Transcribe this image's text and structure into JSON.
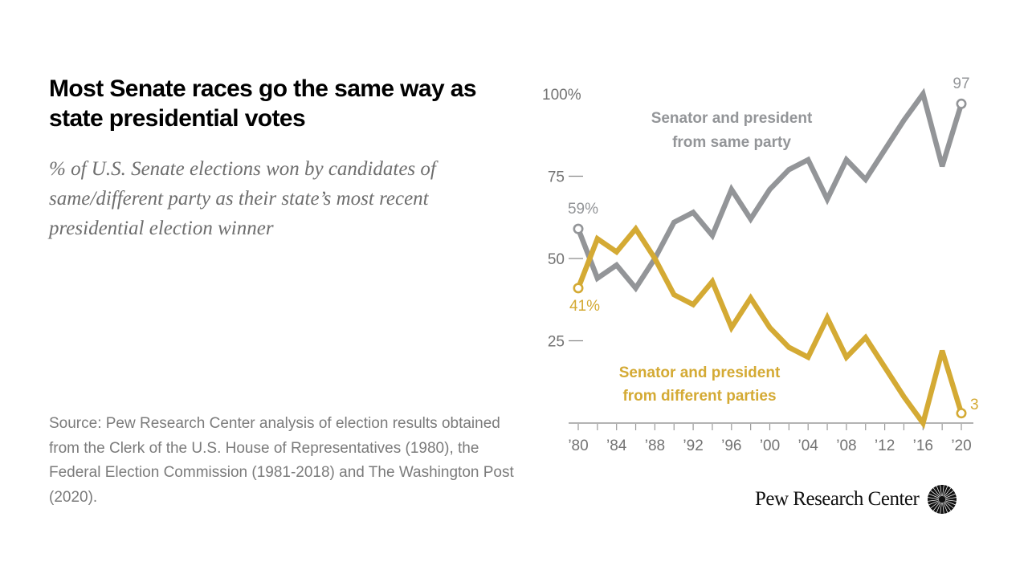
{
  "header": {
    "title": "Most Senate races go the same way as state presidential votes",
    "subtitle": "% of U.S. Senate elections won by candidates of same/different party as their state’s most recent presidential election winner"
  },
  "footer": {
    "source": "Source: Pew Research Center analysis of election results obtained from the Clerk of the U.S. House of Representatives (1980), the Federal Election Commission (1981-2018) and The Washington Post (2020).",
    "brand": "Pew Research Center",
    "brand_icon": "pew-sunburst-icon"
  },
  "colors": {
    "same_party": "#939598",
    "different_party": "#d4aa34",
    "axis": "#b3b3b3",
    "tick_text": "#737373"
  },
  "chart_data": {
    "type": "line",
    "title": "Most Senate races go the same way as state presidential votes",
    "xlabel": "",
    "ylabel": "",
    "x": [
      1980,
      1982,
      1984,
      1986,
      1988,
      1990,
      1992,
      1994,
      1996,
      1998,
      2000,
      2002,
      2004,
      2006,
      2008,
      2010,
      2012,
      2014,
      2016,
      2018,
      2020
    ],
    "xlim": [
      1980,
      2020
    ],
    "ylim": [
      0,
      100
    ],
    "x_ticks": [
      1980,
      1982,
      1984,
      1986,
      1988,
      1990,
      1992,
      1994,
      1996,
      1998,
      2000,
      2002,
      2004,
      2006,
      2008,
      2010,
      2012,
      2014,
      2016,
      2018,
      2020
    ],
    "x_tick_labels": [
      {
        "year": 1980,
        "label": "’80"
      },
      {
        "year": 1984,
        "label": "’84"
      },
      {
        "year": 1988,
        "label": "’88"
      },
      {
        "year": 1992,
        "label": "’92"
      },
      {
        "year": 1996,
        "label": "’96"
      },
      {
        "year": 2000,
        "label": "’00"
      },
      {
        "year": 2004,
        "label": "’04"
      },
      {
        "year": 2008,
        "label": "’08"
      },
      {
        "year": 2012,
        "label": "’12"
      },
      {
        "year": 2016,
        "label": "’16"
      },
      {
        "year": 2020,
        "label": "’20"
      }
    ],
    "y_ticks": [
      {
        "value": 100,
        "label": "100%",
        "dash": false
      },
      {
        "value": 75,
        "label": "75",
        "dash": true
      },
      {
        "value": 50,
        "label": "50",
        "dash": true
      },
      {
        "value": 25,
        "label": "25",
        "dash": true
      }
    ],
    "grid": false,
    "series": [
      {
        "name": "Senator and president from same party",
        "label_lines": [
          "Senator and president",
          "from same party"
        ],
        "color": "#939598",
        "values": [
          59,
          44,
          48,
          41,
          50,
          61,
          64,
          57,
          71,
          62,
          71,
          77,
          80,
          68,
          80,
          74,
          83,
          92,
          100,
          78,
          97
        ],
        "start_label": "59%",
        "end_label": "97"
      },
      {
        "name": "Senator and president from different parties",
        "label_lines": [
          "Senator and president",
          "from different parties"
        ],
        "color": "#d4aa34",
        "values": [
          41,
          56,
          52,
          59,
          50,
          39,
          36,
          43,
          29,
          38,
          29,
          23,
          20,
          32,
          20,
          26,
          17,
          8,
          0,
          22,
          3
        ],
        "start_label": "41%",
        "end_label": "3"
      }
    ]
  }
}
